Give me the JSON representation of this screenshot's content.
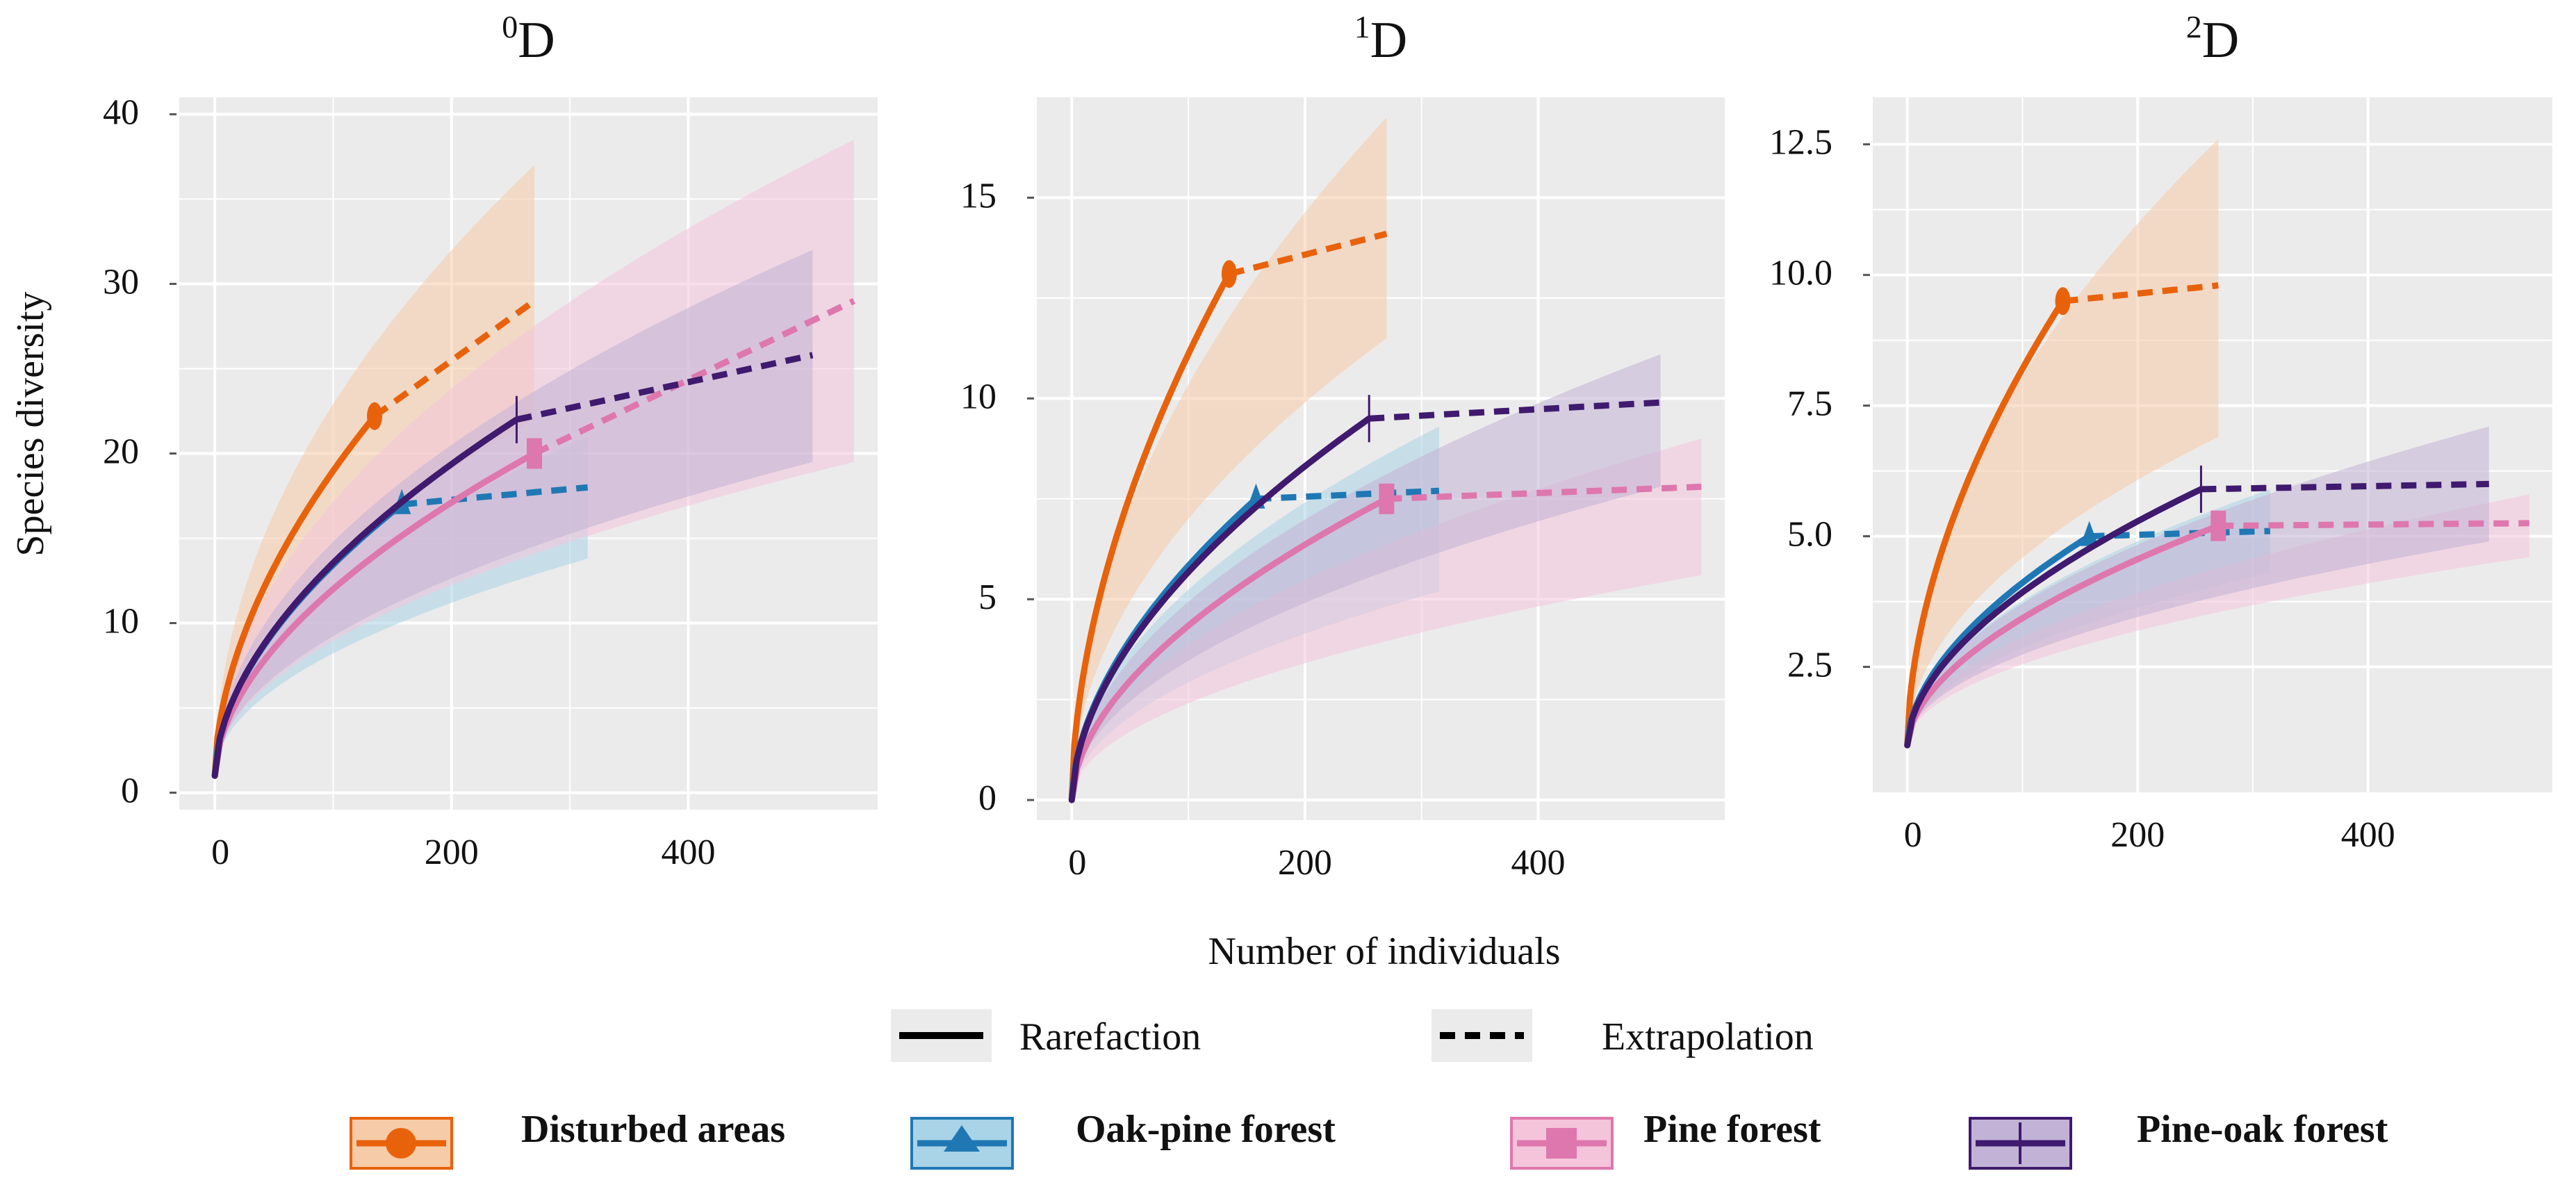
{
  "chart_data": [
    {
      "type": "line",
      "title": "D",
      "title_superscript": "0",
      "xlabel": "Number of individuals",
      "ylabel": "Species diversity",
      "xlim": [
        -30,
        560
      ],
      "ylim": [
        -1,
        41
      ],
      "xticks": [
        0,
        200,
        400
      ],
      "yticks": [
        0,
        10,
        20,
        30,
        40
      ],
      "grid": true,
      "series": [
        {
          "name": "Disturbed areas",
          "color": "#E8620C",
          "marker": "circle",
          "n_obs": 135,
          "n_end": 270,
          "y_obs": 22.2,
          "y_end": 29,
          "y0": 1,
          "band_lower_end": 22,
          "band_upper_end": 37
        },
        {
          "name": "Oak-pine forest",
          "color": "#1F78B4",
          "marker": "triangle",
          "n_obs": 158,
          "n_end": 315,
          "y_obs": 17,
          "y_end": 18,
          "y0": 1,
          "band_lower_end": 13.8,
          "band_upper_end": 21
        },
        {
          "name": "Pine forest",
          "color": "#DE77AE",
          "marker": "square",
          "n_obs": 270,
          "n_end": 540,
          "y_obs": 20,
          "y_end": 29,
          "y0": 1,
          "band_lower_end": 19.5,
          "band_upper_end": 38.5
        },
        {
          "name": "Pine-oak forest",
          "color": "#3F1A6E",
          "marker": "cross",
          "n_obs": 255,
          "n_end": 505,
          "y_obs": 22,
          "y_end": 25.8,
          "y0": 1,
          "band_lower_end": 19.5,
          "band_upper_end": 32
        }
      ]
    },
    {
      "type": "line",
      "title": "D",
      "title_superscript": "1",
      "xlabel": "Number of individuals",
      "ylabel": "Species diversity",
      "xlim": [
        -30,
        560
      ],
      "ylim": [
        -0.5,
        17.5
      ],
      "xticks": [
        0,
        200,
        400
      ],
      "yticks": [
        0,
        5,
        10,
        15
      ],
      "grid": true,
      "series": [
        {
          "name": "Disturbed areas",
          "color": "#E8620C",
          "marker": "circle",
          "n_obs": 135,
          "n_end": 270,
          "y_obs": 13.1,
          "y_end": 14.1,
          "y0": 0,
          "band_lower_end": 11.5,
          "band_upper_end": 17
        },
        {
          "name": "Oak-pine forest",
          "color": "#1F78B4",
          "marker": "triangle",
          "n_obs": 158,
          "n_end": 315,
          "y_obs": 7.5,
          "y_end": 7.7,
          "y0": 0,
          "band_lower_end": 5.2,
          "band_upper_end": 9.3
        },
        {
          "name": "Pine forest",
          "color": "#DE77AE",
          "marker": "square",
          "n_obs": 270,
          "n_end": 540,
          "y_obs": 7.5,
          "y_end": 7.8,
          "y0": 0,
          "band_lower_end": 5.6,
          "band_upper_end": 9
        },
        {
          "name": "Pine-oak forest",
          "color": "#3F1A6E",
          "marker": "cross",
          "n_obs": 255,
          "n_end": 505,
          "y_obs": 9.5,
          "y_end": 9.9,
          "y0": 0,
          "band_lower_end": 7.8,
          "band_upper_end": 11.1
        }
      ]
    },
    {
      "type": "line",
      "title": "D",
      "title_superscript": "2",
      "xlabel": "Number of individuals",
      "ylabel": "Species diversity",
      "xlim": [
        -30,
        560
      ],
      "ylim": [
        0.1,
        13.4
      ],
      "xticks": [
        0,
        200,
        400
      ],
      "yticks": [
        2.5,
        5.0,
        7.5,
        10.0,
        12.5
      ],
      "ytick_labels": [
        "2.5",
        "5.0",
        "7.5",
        "10.0",
        "12.5"
      ],
      "grid": true,
      "series": [
        {
          "name": "Disturbed areas",
          "color": "#E8620C",
          "marker": "circle",
          "n_obs": 135,
          "n_end": 270,
          "y_obs": 9.5,
          "y_end": 9.8,
          "y0": 1,
          "band_lower_end": 6.9,
          "band_upper_end": 12.6
        },
        {
          "name": "Oak-pine forest",
          "color": "#1F78B4",
          "marker": "triangle",
          "n_obs": 158,
          "n_end": 315,
          "y_obs": 5.0,
          "y_end": 5.1,
          "y0": 1,
          "band_lower_end": 4.3,
          "band_upper_end": 5.9
        },
        {
          "name": "Pine forest",
          "color": "#DE77AE",
          "marker": "square",
          "n_obs": 270,
          "n_end": 540,
          "y_obs": 5.2,
          "y_end": 5.25,
          "y0": 1,
          "band_lower_end": 4.6,
          "band_upper_end": 5.8
        },
        {
          "name": "Pine-oak forest",
          "color": "#3F1A6E",
          "marker": "cross",
          "n_obs": 255,
          "n_end": 505,
          "y_obs": 5.9,
          "y_end": 6.0,
          "y0": 1,
          "band_lower_end": 4.9,
          "band_upper_end": 7.1
        }
      ]
    }
  ],
  "legend": {
    "line_types": [
      {
        "label": "Rarefaction",
        "style": "solid"
      },
      {
        "label": "Extrapolation",
        "style": "dashed"
      }
    ],
    "groups": [
      {
        "label": "Disturbed areas",
        "color": "#E8620C",
        "fill": "#F6CBA8",
        "marker": "circle"
      },
      {
        "label": "Oak-pine forest",
        "color": "#1F78B4",
        "fill": "#A9D3E6",
        "marker": "triangle"
      },
      {
        "label": "Pine forest",
        "color": "#DE77AE",
        "fill": "#F4C4DA",
        "marker": "square"
      },
      {
        "label": "Pine-oak forest",
        "color": "#3F1A6E",
        "fill": "#C2B3D6",
        "marker": "cross"
      }
    ]
  },
  "colors": {
    "panel_background": "#EBEBEB",
    "grid": "#FFFFFF",
    "text": "#111111"
  }
}
